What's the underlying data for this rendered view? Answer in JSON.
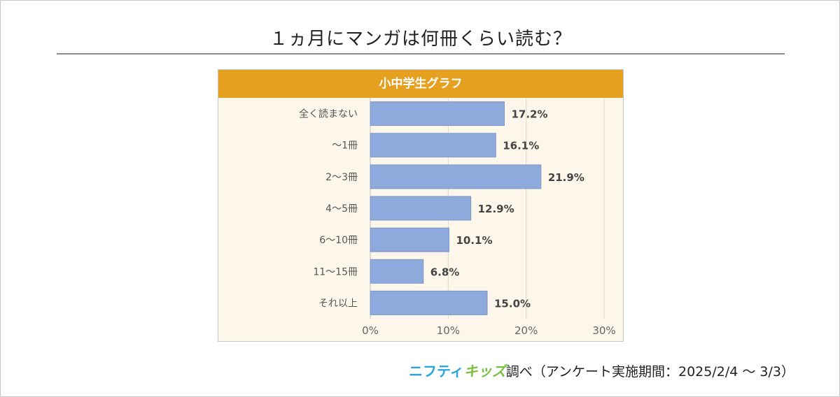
{
  "page": {
    "title": "１ヵ月にマンガは何冊くらい読む？"
  },
  "chart_data": {
    "type": "bar",
    "orientation": "horizontal",
    "title": "小中学生グラフ",
    "categories": [
      "全く読まない",
      "〜1冊",
      "2〜3冊",
      "4〜5冊",
      "6〜10冊",
      "11〜15冊",
      "それ以上"
    ],
    "values": [
      17.2,
      16.1,
      21.9,
      12.9,
      10.1,
      6.8,
      15.0
    ],
    "value_labels": [
      "17.2%",
      "16.1%",
      "21.9%",
      "12.9%",
      "10.1%",
      "6.8%",
      "15.0%"
    ],
    "x_ticks": [
      "0%",
      "10%",
      "20%",
      "30%"
    ],
    "xlim": [
      0,
      30
    ],
    "grid": true,
    "bar_color": "#8ea9db",
    "header_color": "#e6a020",
    "plot_bg": "#fdf6ea"
  },
  "footer": {
    "logo_part1": "ニフティ",
    "logo_part2": "キッズ",
    "text": "調べ（アンケート実施期間：2025/2/4 〜 3/3）"
  }
}
